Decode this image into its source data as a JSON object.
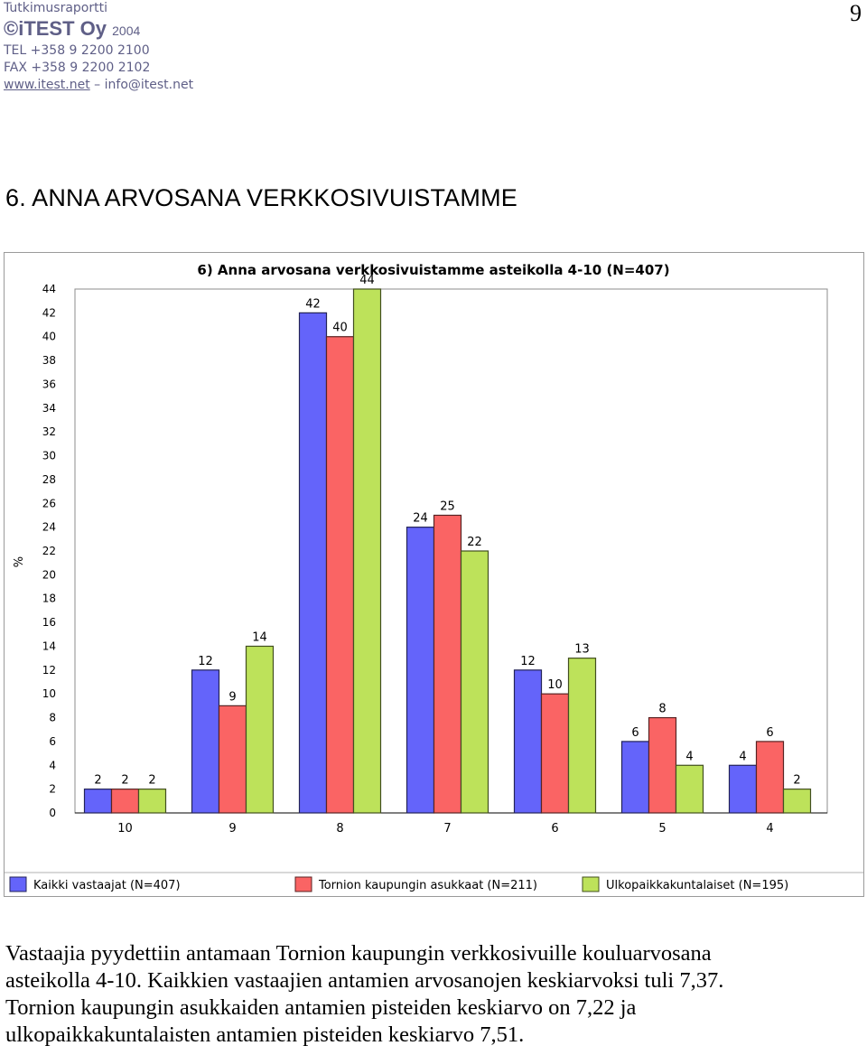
{
  "header": {
    "report_label": "Tutkimusraportti",
    "brand": "©iTEST Oy",
    "year": "2004",
    "tel": "TEL +358 9 2200 2100",
    "fax": "FAX +358 9 2200 2102",
    "website": "www.itest.net",
    "separator": " – ",
    "email": "info@itest.net"
  },
  "page_number": "9",
  "section_title": "6. ANNA ARVOSANA VERKKOSIVUISTAMME",
  "chart_data": {
    "type": "bar",
    "title": "6) Anna arvosana verkkosivuistamme asteikolla 4-10 (N=407)",
    "ylabel": "%",
    "xlabel": "",
    "categories": [
      "10",
      "9",
      "8",
      "7",
      "6",
      "5",
      "4"
    ],
    "series": [
      {
        "name": "Kaikki vastaajat (N=407)",
        "color": "#6464fa",
        "values": [
          2,
          12,
          42,
          24,
          12,
          6,
          4
        ]
      },
      {
        "name": "Tornion kaupungin asukkaat (N=211)",
        "color": "#fa6464",
        "values": [
          2,
          9,
          40,
          25,
          10,
          8,
          6
        ]
      },
      {
        "name": "Ulkopaikkakuntalaiset (N=195)",
        "color": "#bde25a",
        "values": [
          2,
          14,
          44,
          22,
          13,
          4,
          2
        ]
      }
    ],
    "ylim": [
      0,
      44
    ],
    "yticks": [
      0,
      2,
      4,
      6,
      8,
      10,
      12,
      14,
      16,
      18,
      20,
      22,
      24,
      26,
      28,
      30,
      32,
      34,
      36,
      38,
      40,
      42,
      44
    ],
    "legend_position": "bottom",
    "grid": false
  },
  "paragraph": {
    "lines": [
      "Vastaajia pyydettiin antamaan Tornion kaupungin verkkosivuille kouluarvosana",
      "asteikolla 4-10. Kaikkien vastaajien antamien arvosanojen keskiarvoksi tuli 7,37.",
      "Tornion kaupungin asukkaiden antamien pisteiden keskiarvo on 7,22 ja",
      "ulkopaikkakuntalaisten antamien pisteiden keskiarvo 7,51."
    ]
  }
}
